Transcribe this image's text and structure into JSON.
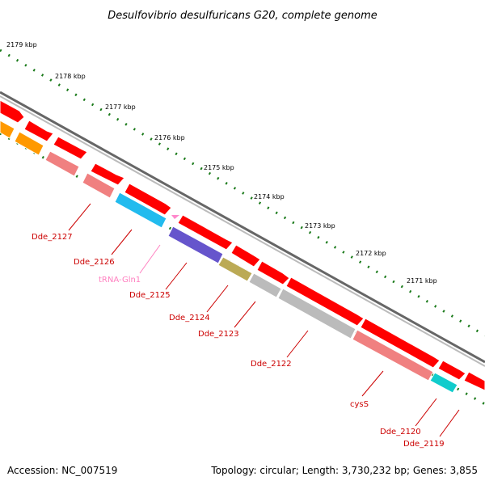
{
  "title": "Desulfovibrio desulfuricans G20, complete genome",
  "footer": {
    "accession": "Accession: NC_007519",
    "topology": "Topology: circular; Length: 3,730,232 bp; Genes: 3,855"
  },
  "colors": {
    "cds": "#ff0000",
    "cds_light": "#f08080",
    "trna": "#ff88cc",
    "label_red": "#cc0000",
    "label_pink": "#ff80c0",
    "backbone": "#888888",
    "tick": "#1a7a1a"
  },
  "kbp_marks": [
    "2179 kbp",
    "2178 kbp",
    "2177 kbp",
    "2176 kbp",
    "2175 kbp",
    "2174 kbp",
    "2173 kbp",
    "2172 kbp",
    "2171 kbp"
  ],
  "gene_labels": [
    {
      "name": "Dde_2127",
      "kind": "cds"
    },
    {
      "name": "Dde_2126",
      "kind": "cds"
    },
    {
      "name": "tRNA-Gln1",
      "kind": "trna"
    },
    {
      "name": "Dde_2125",
      "kind": "cds"
    },
    {
      "name": "Dde_2124",
      "kind": "cds"
    },
    {
      "name": "Dde_2123",
      "kind": "cds"
    },
    {
      "name": "Dde_2122",
      "kind": "cds"
    },
    {
      "name": "cysS",
      "kind": "cds"
    },
    {
      "name": "Dde_2120",
      "kind": "cds"
    },
    {
      "name": "Dde_2119",
      "kind": "cds"
    }
  ]
}
